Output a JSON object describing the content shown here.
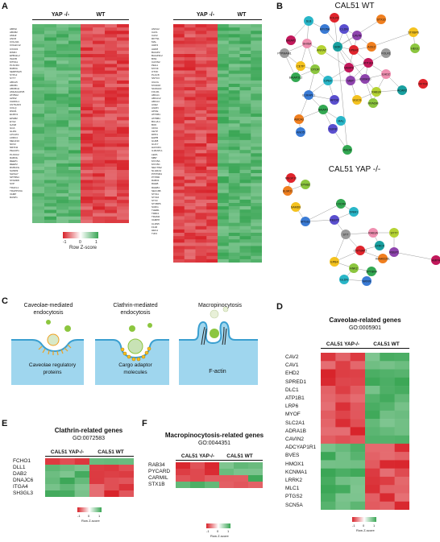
{
  "panels": {
    "a": {
      "letter": "A",
      "left_header": {
        "yap": "YAP -/-",
        "wt": "WT"
      },
      "right_header": {
        "yap": "YAP -/-",
        "wt": "WT"
      },
      "left_genes": [
        "ABPHI",
        "ABCB2",
        "AMHZ",
        "ANO6",
        "COL2H1",
        "COLEC12",
        "CXCR4",
        "DIMIN",
        "EPB41L2",
        "INAFB",
        "MTSS1",
        "PLSCR4",
        "RAB3A",
        "SERPINA5",
        "SYPL2",
        "SYT7",
        "ABCA5",
        "ABCB1",
        "ABCB1H",
        "AMHAGAP25",
        "ATP8A2",
        "AZIN2",
        "CHRDL1",
        "CNTNAP2",
        "COLQ",
        "DNM1",
        "ELMO1",
        "EPHB2",
        "EYA2",
        "GAS8",
        "GCA",
        "GLDN",
        "LPCAT2",
        "LRRC4",
        "MEGF10",
        "NKX2",
        "NRXN2",
        "PEAUP1",
        "PLXDC2",
        "RAB3IL",
        "REEP1",
        "REEP2",
        "RUBCNL",
        "SAMD9",
        "SHISA7",
        "SPTBN4",
        "STARD8",
        "SVP",
        "TRAFL1",
        "TRAPPC9A",
        "VAMP",
        "RASP1"
      ],
      "right_genes": [
        "ANXA2",
        "CAV1",
        "CAV2",
        "RFTN1",
        "MAL",
        "AHD3",
        "AHD8",
        "BAIAP2",
        "BAIAP2L2",
        "BIN1",
        "CAVIN2",
        "PEG1",
        "MYOF",
        "OTOF",
        "PLAC8",
        "SNTC3",
        "UGCG",
        "MYADM",
        "S100A10",
        "FOLR1",
        "ABCA1",
        "ABCA12",
        "ABCA4",
        "ACE2",
        "AGRN",
        "APOE",
        "ATP1B1",
        "ATP9B1",
        "BCL2L1",
        "BOK",
        "CD34",
        "CETP",
        "DPP4",
        "EHPB",
        "GUR8",
        "GUCY",
        "HAVCR1",
        "IL1RAPL1",
        "LEPA",
        "MBP",
        "MYO5A",
        "MYO5C",
        "NECTIN2",
        "NLGRA4",
        "PITPNM1",
        "PTPRD",
        "RAB31",
        "RHEB",
        "RHEB1",
        "SEC16B",
        "STX11",
        "STX16",
        "STX3",
        "STXBP6",
        "SURG",
        "THEB1",
        "TIMD4",
        "TRAM2",
        "VAMP8",
        "CLDN5",
        "F11R",
        "HEG1",
        "TJP2"
      ],
      "legend": {
        "title": "Row Z-score",
        "ticks": [
          "-1",
          "0",
          "1"
        ]
      }
    },
    "b": {
      "letter": "B",
      "wt_title": "CAL51 WT",
      "yap_title": "CAL51 YAP -/-",
      "wt_nodes": [
        "FOLR1",
        "STX16",
        "STXBP6",
        "HEG1",
        "ANO6",
        "SLB",
        "MYO5A",
        "CLDN",
        "CAVIN",
        "BAIAP2",
        "PTPMAM1",
        "SHISA",
        "ANXA2",
        "BOK",
        "EPB41",
        "ACE2",
        "CETP",
        "OTOF",
        "BAIAP2L2",
        "EPB4",
        "IL1RAPL1",
        "APOE",
        "MBP",
        "ATP1B1",
        "FOLR1",
        "EHD2",
        "RAB3A",
        "ACAR2",
        "RFTN1",
        "ABCA3",
        "UGCG",
        "MYADM",
        "BAIAP2",
        "MAL",
        "ANO5",
        "SUR8",
        "S100A10",
        "VAMP8"
      ],
      "yap_nodes": [
        "MEGF10",
        "ELMO1",
        "SAMD9",
        "EPHB2",
        "CXCR4",
        "DNM1",
        "MTSS1",
        "REEP2",
        "REEP1",
        "AMPH",
        "SYT",
        "RAB3A",
        "SYT7",
        "LRRC4",
        "CNTNAP2",
        "KIAA0226L",
        "EPB4",
        "ANK2",
        "SPTBN4",
        "GLDN",
        "NRXN"
      ]
    },
    "c": {
      "letter": "C",
      "cav_title": [
        "Caveolae-mediated",
        "endocytosis"
      ],
      "cav_label": [
        "Caveolae regulatory",
        "proteins"
      ],
      "cla_title": [
        "Clathrin-mediated",
        "endocytosis"
      ],
      "cla_label": [
        "Cargo adaptor",
        "molecules"
      ],
      "mac_title": "Macropinocytosis",
      "mac_label": "F-actin"
    },
    "d": {
      "letter": "D",
      "title": "Caveolae-related genes",
      "go": "GO:0005901",
      "cols": {
        "yap": "CAL51 YAP-/-",
        "wt": "CAL51 WT"
      },
      "genes": [
        "CAV2",
        "CAV1",
        "EHD2",
        "SPRED1",
        "DLC1",
        "ATP1B1",
        "LRP6",
        "MYOF",
        "SLC2A1",
        "ADRA1B",
        "CAVIN2",
        "ADCYAP1R1",
        "BVES",
        "HMOX1",
        "KCNMA1",
        "LRRK2",
        "MLC1",
        "PTGS2",
        "SCN5A"
      ],
      "legend": {
        "title": "Row Z-score",
        "ticks": [
          "-1",
          "0",
          "1"
        ]
      }
    },
    "e": {
      "letter": "E",
      "title": "Clathrin-related genes",
      "go": "GO:0072583",
      "cols": {
        "yap": "CAL51 YAP-/-",
        "wt": "CAL51 WT"
      },
      "genes": [
        "FCHO1",
        "DLL1",
        "DAB2",
        "DNAJC6",
        "ITGA4",
        "SH3GL3"
      ],
      "legend": {
        "title": "Row Z-score",
        "ticks": [
          "-1",
          "0",
          "1"
        ]
      }
    },
    "f": {
      "letter": "F",
      "title": "Macropinocytosis-related genes",
      "go": "GO:0044351",
      "cols": {
        "yap": "CAL51 YAP-/-",
        "wt": "CAL51 WT"
      },
      "genes": [
        "RAB34",
        "PYCARD",
        "CARMIL",
        "STX1B"
      ],
      "legend": {
        "title": "Row Z-score",
        "ticks": [
          "-1",
          "0",
          "1"
        ]
      }
    }
  },
  "colors": {
    "red": "#d8232a",
    "green": "#3aa655",
    "membrane": "#6fc3e6"
  }
}
